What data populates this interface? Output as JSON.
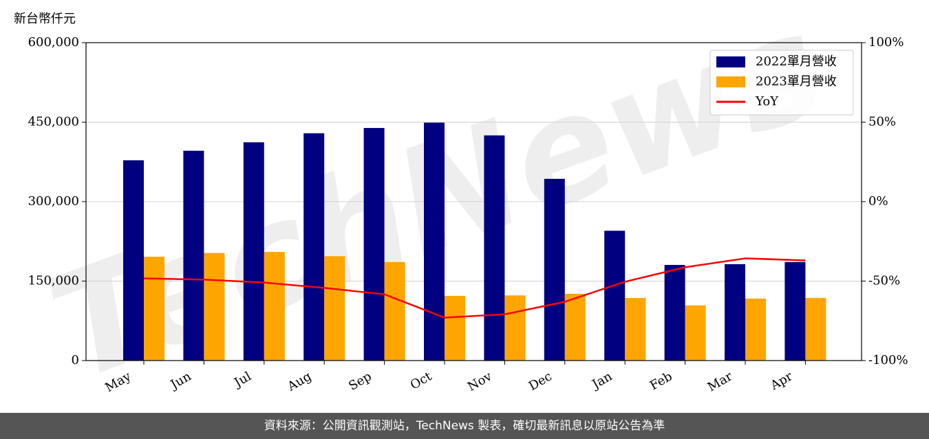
{
  "chart_data": {
    "type": "bar_line",
    "y_label": "新台幣仟元",
    "watermark": "TechNews",
    "footer": "資料來源：公開資訊觀測站，TechNews 製表，確切最新訊息以原站公告為準",
    "categories": [
      "May",
      "Jun",
      "Jul",
      "Aug",
      "Sep",
      "Oct",
      "Nov",
      "Dec",
      "Jan",
      "Feb",
      "Mar",
      "Apr"
    ],
    "series": [
      {
        "name": "2022單月營收",
        "color": "#000080",
        "type": "bar",
        "values": [
          378000,
          396000,
          412000,
          429000,
          439000,
          449000,
          425000,
          343000,
          245000,
          180500,
          182000,
          186000
        ]
      },
      {
        "name": "2023單月營收",
        "color": "#ffa500",
        "type": "bar",
        "values": [
          196000,
          203000,
          205000,
          197000,
          186000,
          122000,
          123000,
          126000,
          118000,
          104000,
          117000,
          118000
        ]
      },
      {
        "name": "YoY",
        "color": "#ff0000",
        "type": "line",
        "axis": "y2",
        "values": [
          -48.3,
          -49.1,
          -50.9,
          -54.3,
          -58.3,
          -73.0,
          -70.9,
          -63.0,
          -50.4,
          -41.3,
          -35.7,
          -37.0
        ]
      }
    ],
    "ylim": [
      0,
      600000
    ],
    "yticks": [
      {
        "value": 0,
        "label": "0"
      },
      {
        "value": 150000,
        "label": "150,000"
      },
      {
        "value": 300000,
        "label": "300,000"
      },
      {
        "value": 450000,
        "label": "450,000"
      },
      {
        "value": 600000,
        "label": "600,000"
      }
    ],
    "y2lim": [
      -100,
      100
    ],
    "y2ticks": [
      {
        "value": -100,
        "label": "-100%"
      },
      {
        "value": -50,
        "label": "-50%"
      },
      {
        "value": 0,
        "label": "0%"
      },
      {
        "value": 50,
        "label": "50%"
      },
      {
        "value": 100,
        "label": "100%"
      }
    ],
    "grid": true,
    "legend": "upper right"
  }
}
